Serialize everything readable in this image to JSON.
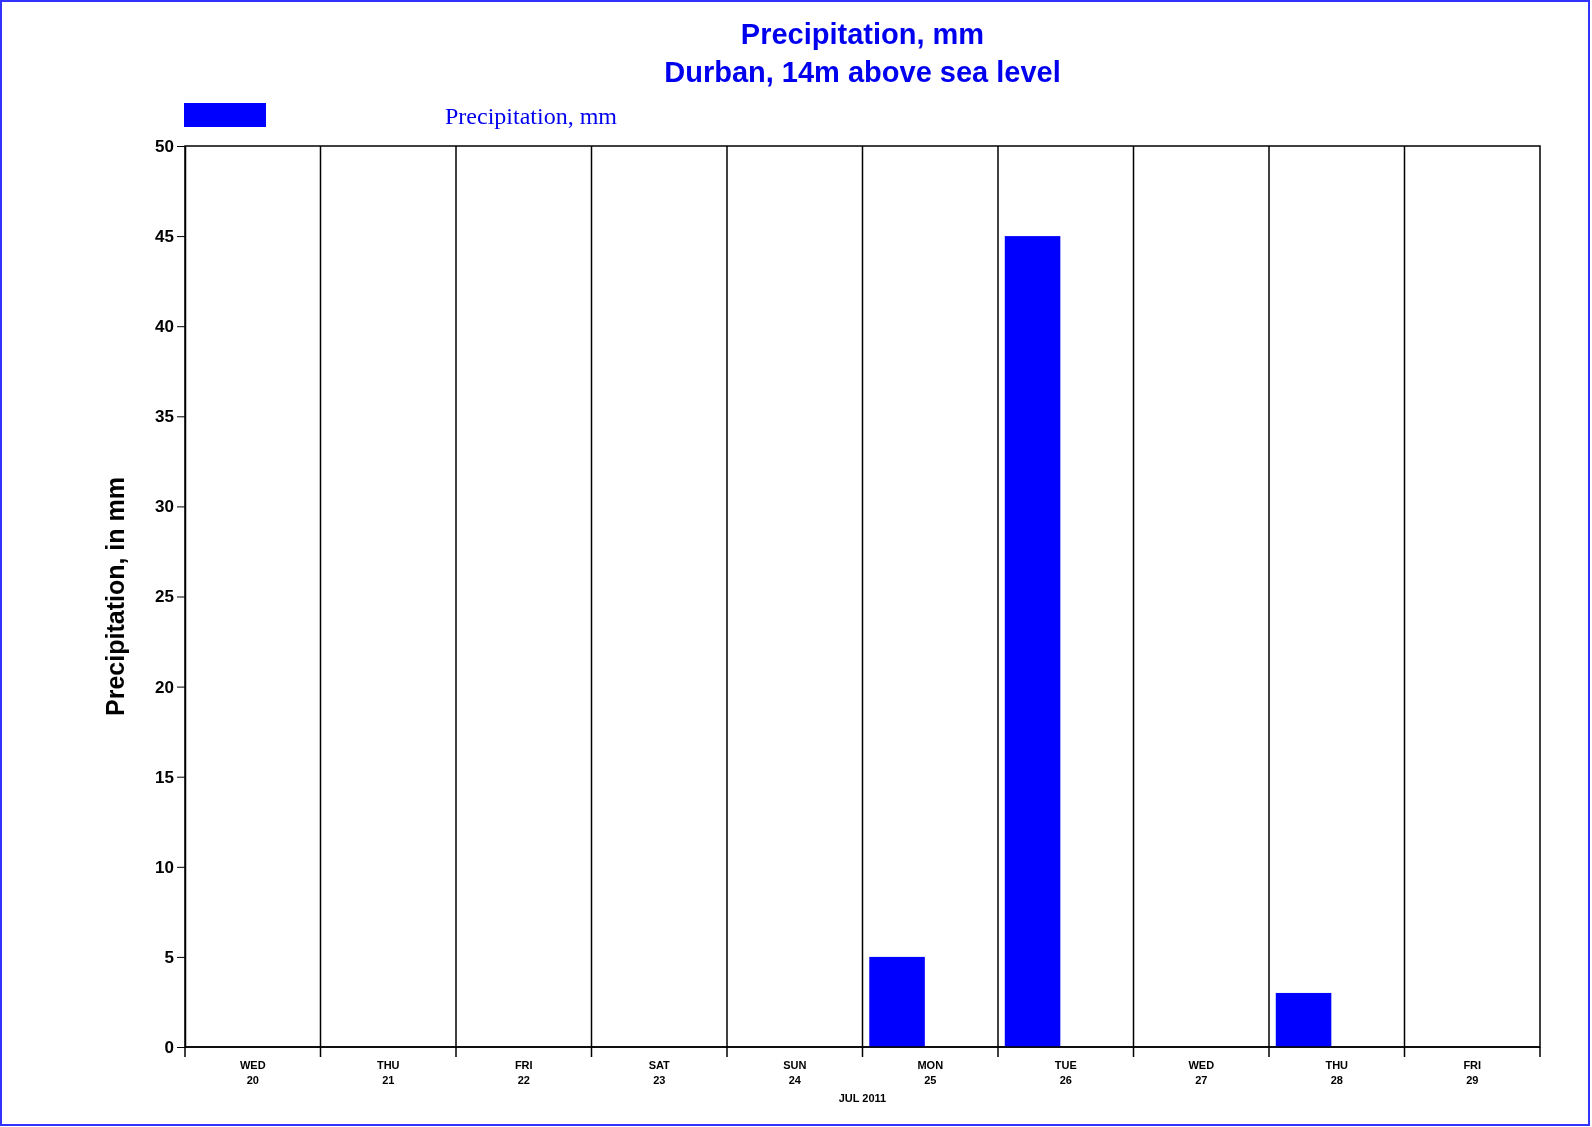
{
  "chart_data": {
    "type": "bar",
    "title": "Precipitation, mm",
    "subtitle": "Durban, 14m above sea level",
    "ylabel": "Precipitation, in mm",
    "xlabel": "JUL 2011",
    "categories": [
      "WED 20",
      "THU 21",
      "FRI 22",
      "SAT 23",
      "SUN 24",
      "MON 25",
      "TUE 26",
      "WED 27",
      "THU 28",
      "FRI 29"
    ],
    "series": [
      {
        "name": "Precipitation, mm",
        "color": "#0000ff",
        "values": [
          0,
          0,
          0,
          0,
          0,
          5,
          45,
          0,
          3,
          0
        ]
      }
    ],
    "ylim": [
      0,
      50
    ],
    "yticks": [
      0,
      5,
      10,
      15,
      20,
      25,
      30,
      35,
      40,
      45,
      50
    ],
    "grid": "x",
    "legend": "top left"
  }
}
